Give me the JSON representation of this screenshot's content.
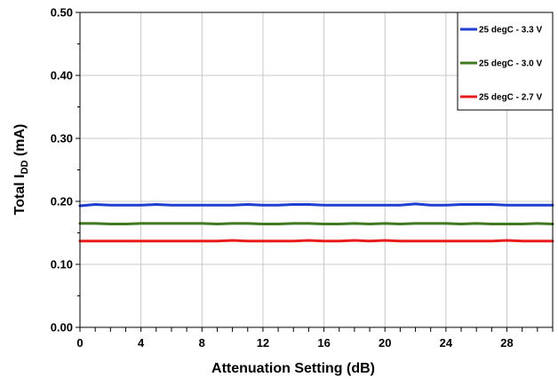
{
  "chart_data": {
    "type": "line",
    "title": "",
    "xlabel": "Attenuation Setting (dB)",
    "ylabel_parts": {
      "prefix": "Total I",
      "subscript": "DD",
      "suffix": " (mA)"
    },
    "xlim": [
      0,
      31
    ],
    "ylim": [
      0,
      0.5
    ],
    "xticks": [
      "0",
      "4",
      "8",
      "12",
      "16",
      "20",
      "24",
      "28"
    ],
    "yticks": [
      "0.00",
      "0.10",
      "0.20",
      "0.30",
      "0.40",
      "0.50"
    ],
    "grid": true,
    "legend_position": "top-right",
    "x": [
      0,
      1,
      2,
      3,
      4,
      5,
      6,
      7,
      8,
      9,
      10,
      11,
      12,
      13,
      14,
      15,
      16,
      17,
      18,
      19,
      20,
      21,
      22,
      23,
      24,
      25,
      26,
      27,
      28,
      29,
      30,
      31
    ],
    "series": [
      {
        "name": "25 degC - 3.3 V",
        "color": "#1f3fd0",
        "values": [
          0.193,
          0.195,
          0.194,
          0.194,
          0.194,
          0.195,
          0.194,
          0.194,
          0.194,
          0.194,
          0.194,
          0.195,
          0.194,
          0.194,
          0.195,
          0.195,
          0.194,
          0.194,
          0.194,
          0.194,
          0.194,
          0.194,
          0.196,
          0.194,
          0.194,
          0.195,
          0.195,
          0.195,
          0.194,
          0.194,
          0.194,
          0.194
        ]
      },
      {
        "name": "25 degC - 3.0 V",
        "color": "#3f7a1f",
        "values": [
          0.165,
          0.165,
          0.164,
          0.164,
          0.165,
          0.165,
          0.165,
          0.165,
          0.165,
          0.164,
          0.165,
          0.165,
          0.164,
          0.164,
          0.165,
          0.165,
          0.164,
          0.164,
          0.165,
          0.164,
          0.165,
          0.164,
          0.165,
          0.165,
          0.165,
          0.164,
          0.165,
          0.164,
          0.164,
          0.164,
          0.165,
          0.164
        ]
      },
      {
        "name": "25 degC - 2.7 V",
        "color": "#e81c1c",
        "values": [
          0.137,
          0.137,
          0.137,
          0.137,
          0.137,
          0.137,
          0.137,
          0.137,
          0.137,
          0.137,
          0.138,
          0.137,
          0.137,
          0.137,
          0.137,
          0.138,
          0.137,
          0.137,
          0.138,
          0.137,
          0.138,
          0.137,
          0.137,
          0.137,
          0.137,
          0.137,
          0.137,
          0.137,
          0.138,
          0.137,
          0.137,
          0.137
        ]
      }
    ]
  }
}
